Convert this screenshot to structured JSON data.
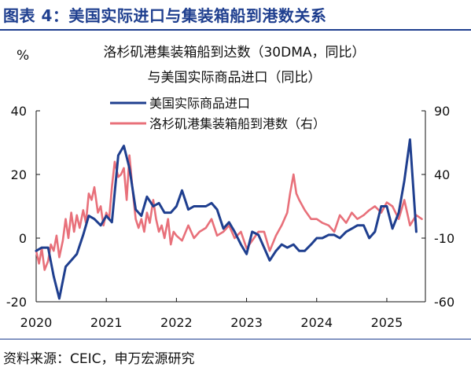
{
  "figure": {
    "title": "图表 4：美国实际进口与集装箱船到港数关系",
    "source": "资料来源：CEIC，申万宏源研究"
  },
  "chart_data": {
    "type": "line",
    "title_lines": [
      "洛杉矶港集装箱船到达数（30DMA，同比）",
      "与美国实际商品进口（同比）"
    ],
    "left_unit": "%",
    "x_ticks": [
      "2020",
      "2021",
      "2022",
      "2023",
      "2024",
      "2025"
    ],
    "x_range": [
      2020.0,
      2025.55
    ],
    "y_left": {
      "ticks": [
        "40",
        "20",
        "0",
        "-20"
      ],
      "range": [
        -20,
        40
      ]
    },
    "y_right": {
      "ticks": [
        "90",
        "40",
        "-10",
        "-60"
      ],
      "range": [
        -60,
        90
      ]
    },
    "grid": false,
    "legend_position": "top-center",
    "series": [
      {
        "name": "美国实际商品进口",
        "axis": "left",
        "color": "#1f3f8f",
        "x": [
          2020.0,
          2020.08,
          2020.17,
          2020.25,
          2020.33,
          2020.42,
          2020.5,
          2020.58,
          2020.67,
          2020.75,
          2020.83,
          2020.92,
          2021.0,
          2021.08,
          2021.17,
          2021.25,
          2021.33,
          2021.42,
          2021.5,
          2021.58,
          2021.67,
          2021.75,
          2021.83,
          2021.92,
          2022.0,
          2022.08,
          2022.17,
          2022.25,
          2022.33,
          2022.42,
          2022.5,
          2022.58,
          2022.67,
          2022.75,
          2022.83,
          2022.92,
          2023.0,
          2023.08,
          2023.17,
          2023.25,
          2023.33,
          2023.42,
          2023.5,
          2023.58,
          2023.67,
          2023.75,
          2023.83,
          2023.92,
          2024.0,
          2024.08,
          2024.17,
          2024.25,
          2024.33,
          2024.42,
          2024.5,
          2024.58,
          2024.67,
          2024.75,
          2024.83,
          2024.92,
          2025.0,
          2025.08,
          2025.17,
          2025.25,
          2025.33,
          2025.42
        ],
        "y": [
          -4,
          -3,
          -3,
          -12,
          -19,
          -9,
          -7,
          -5,
          1,
          7,
          6,
          4,
          7,
          5,
          26,
          29,
          22,
          9,
          7,
          13,
          10,
          11,
          8,
          8,
          10,
          15,
          9,
          10,
          10,
          10,
          11,
          9,
          3,
          5,
          2,
          -2,
          -5,
          2,
          1,
          -3,
          -7,
          -4,
          -2,
          -3,
          -2,
          -4,
          -4,
          -2,
          0,
          0,
          1,
          1,
          0,
          2,
          3,
          4,
          4,
          0,
          2,
          10,
          10,
          3,
          8,
          18,
          31,
          2
        ]
      },
      {
        "name": "洛杉矶港集装箱船到港数（右）",
        "axis": "right",
        "color": "#e8707a",
        "x": [
          2020.0,
          2020.04,
          2020.08,
          2020.12,
          2020.17,
          2020.21,
          2020.25,
          2020.29,
          2020.33,
          2020.38,
          2020.42,
          2020.46,
          2020.5,
          2020.54,
          2020.58,
          2020.62,
          2020.67,
          2020.71,
          2020.75,
          2020.79,
          2020.83,
          2020.88,
          2020.92,
          2020.96,
          2021.0,
          2021.04,
          2021.08,
          2021.12,
          2021.17,
          2021.21,
          2021.25,
          2021.29,
          2021.33,
          2021.38,
          2021.42,
          2021.46,
          2021.5,
          2021.54,
          2021.58,
          2021.62,
          2021.67,
          2021.71,
          2021.75,
          2021.79,
          2021.83,
          2021.88,
          2021.92,
          2021.96,
          2022.0,
          2022.08,
          2022.17,
          2022.25,
          2022.33,
          2022.42,
          2022.5,
          2022.58,
          2022.67,
          2022.75,
          2022.83,
          2022.92,
          2023.0,
          2023.08,
          2023.17,
          2023.25,
          2023.33,
          2023.42,
          2023.5,
          2023.58,
          2023.62,
          2023.67,
          2023.71,
          2023.75,
          2023.83,
          2023.92,
          2024.0,
          2024.08,
          2024.17,
          2024.25,
          2024.33,
          2024.42,
          2024.5,
          2024.58,
          2024.67,
          2024.75,
          2024.83,
          2024.92,
          2025.0,
          2025.08,
          2025.17,
          2025.25,
          2025.33,
          2025.42,
          2025.5
        ],
        "y": [
          -20,
          -30,
          -18,
          -35,
          -28,
          -15,
          -20,
          -8,
          -25,
          -12,
          5,
          -10,
          10,
          -5,
          8,
          -2,
          12,
          2,
          25,
          20,
          30,
          10,
          15,
          0,
          10,
          5,
          30,
          50,
          38,
          40,
          45,
          20,
          55,
          25,
          5,
          -2,
          5,
          -5,
          10,
          2,
          20,
          5,
          -5,
          0,
          -10,
          5,
          -15,
          -5,
          -8,
          -12,
          0,
          -10,
          -5,
          -2,
          5,
          -8,
          -5,
          0,
          -10,
          -5,
          -18,
          -12,
          -5,
          -5,
          -20,
          -8,
          0,
          10,
          25,
          40,
          25,
          20,
          12,
          5,
          5,
          2,
          0,
          -5,
          8,
          2,
          10,
          5,
          8,
          12,
          15,
          10,
          18,
          15,
          5,
          20,
          0,
          8,
          5
        ]
      }
    ]
  }
}
